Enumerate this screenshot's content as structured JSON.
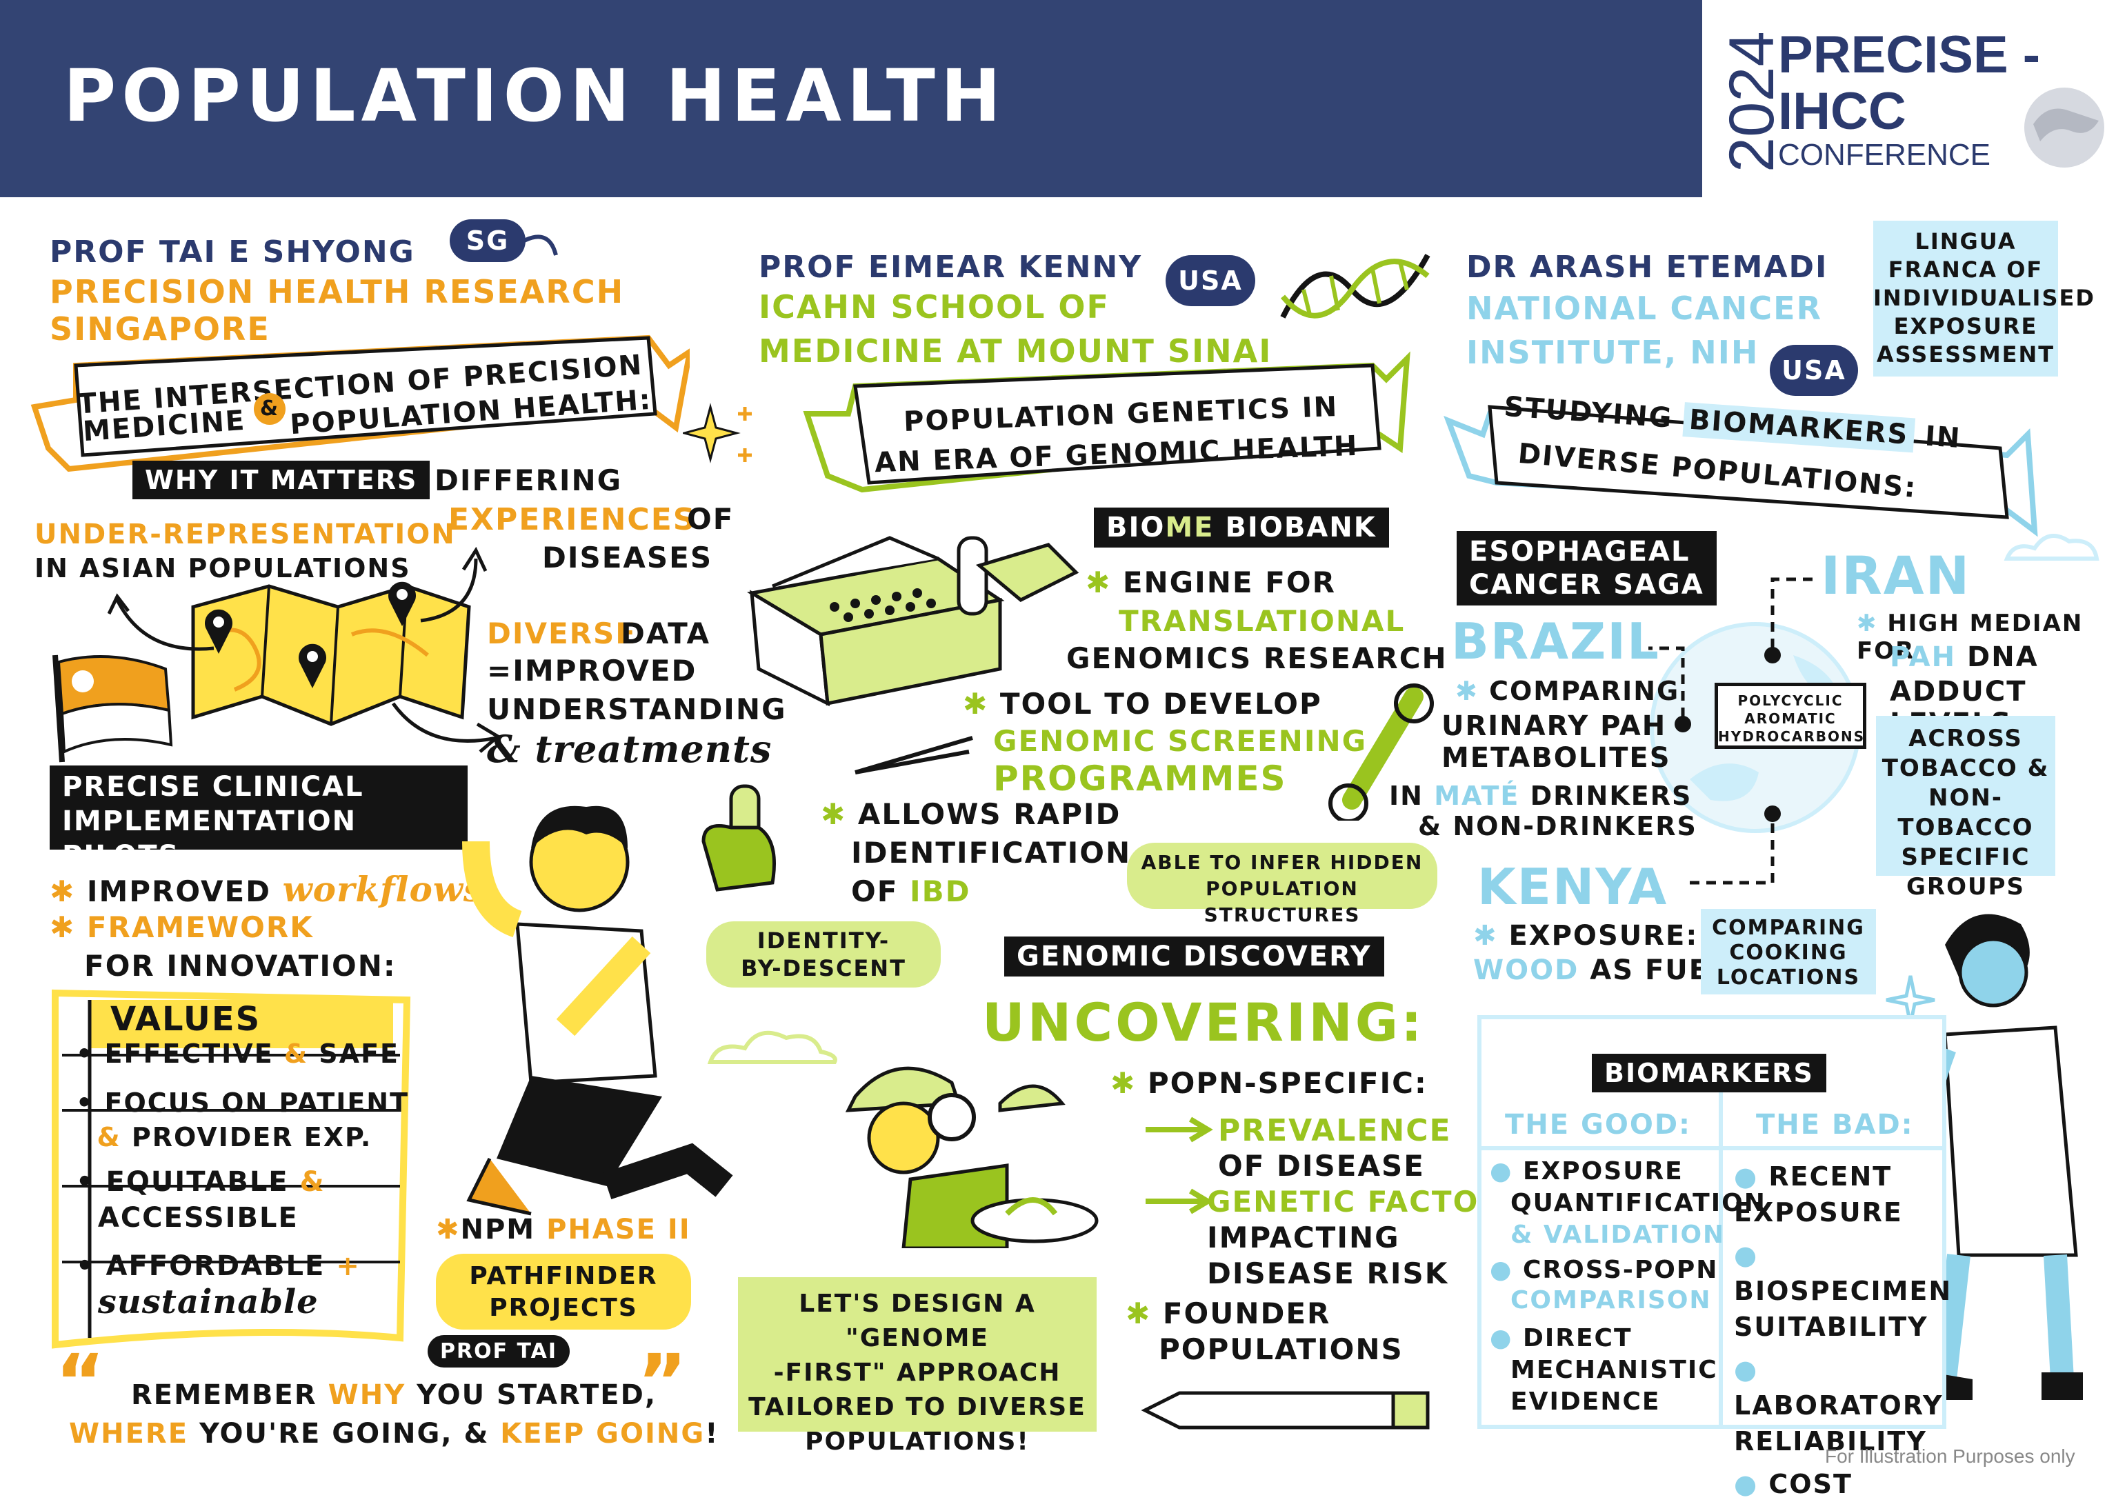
{
  "header": {
    "title": "POPULATION HEALTH"
  },
  "logo": {
    "year": "2024",
    "line1": "PRECISE -",
    "line2": "IHCC",
    "line3": "CONFERENCE"
  },
  "col1": {
    "speaker": "PROF TAI E SHYONG",
    "country": "SG",
    "affil_line1": "PRECISION HEALTH RESEARCH",
    "affil_line2": "SINGAPORE",
    "banner_line1": "THE INTERSECTION OF PRECISION",
    "banner_line2_a": "MEDICINE",
    "banner_amp": "&",
    "banner_line2_b": "POPULATION HEALTH:",
    "why_tag": "WHY IT MATTERS",
    "underrep_a": "UNDER-REPRESENTATION",
    "underrep_b": "IN ASIAN POPULATIONS",
    "differing_a": "DIFFERING",
    "differing_b": "EXPERIENCES",
    "differing_c": "OF",
    "differing_d": "DISEASES",
    "diverse_a": "DIVERSE",
    "diverse_b": "DATA",
    "diverse_c": "=IMPROVED",
    "diverse_d": "UNDERSTANDING",
    "diverse_e": "& treatments",
    "pilots_line1": "PRECISE CLINICAL",
    "pilots_line2": "IMPLEMENTATION PILOTS",
    "improved_a": "IMPROVED",
    "improved_b": "workflows",
    "framework_a": "FRAMEWORK",
    "framework_b": "FOR INNOVATION:",
    "values_title": "VALUES",
    "values": [
      {
        "a": "EFFECTIVE",
        "amp": "&",
        "b": "SAFE"
      },
      {
        "a": "FOCUS ON PATIENT",
        "amp": "&",
        "b": "PROVIDER EXP."
      },
      {
        "a": "EQUITABLE",
        "amp": "&",
        "b": "ACCESSIBLE"
      },
      {
        "a": "AFFORDABLE",
        "amp": "+",
        "b": "sustainable"
      }
    ],
    "npm_a": "NPM",
    "npm_b": "PHASE II",
    "pathfinder_a": "PATHFINDER",
    "pathfinder_b": "PROJECTS",
    "quote_tag": "PROF TAI",
    "quote_open": "“",
    "quote_close": "”",
    "quote_a1": "REMEMBER",
    "quote_a2": "WHY",
    "quote_a3": "YOU STARTED,",
    "quote_b1": "WHERE",
    "quote_b2": "YOU'RE GOING, &",
    "quote_b3": "KEEP GOING",
    "quote_b4": "!"
  },
  "col2": {
    "speaker": "PROF EIMEAR KENNY",
    "country": "USA",
    "affil_line1": "ICAHN SCHOOL OF",
    "affil_line2": "MEDICINE AT MOUNT SINAI",
    "banner_line1": "POPULATION GENETICS IN",
    "banner_line2": "AN ERA OF GENOMIC HEALTH",
    "biome_a": "BIO",
    "biome_b": "ME",
    "biome_c": " BIOBANK",
    "engine_a": "ENGINE FOR",
    "engine_b": "TRANSLATIONAL",
    "engine_c": "GENOMICS RESEARCH",
    "tool_a": "TOOL TO DEVELOP",
    "tool_b": "GENOMIC SCREENING",
    "tool_c": "PROGRAMMES",
    "allows_a": "ALLOWS RAPID",
    "allows_b": "IDENTIFICATION",
    "allows_c": "OF",
    "allows_d": "IBD",
    "able_a": "ABLE TO INFER HIDDEN",
    "able_b": "POPULATION STRUCTURES",
    "ibd_a": "IDENTITY-",
    "ibd_b": "BY-DESCENT",
    "discovery_tag": "GENOMIC DISCOVERY",
    "uncovering": "UNCOVERING:",
    "popn": "POPN-SPECIFIC:",
    "prev_a": "PREVALENCE",
    "prev_b": "OF DISEASE",
    "gen_a": "GENETIC FACTORS",
    "gen_b": "IMPACTING",
    "gen_c": "DISEASE RISK",
    "founder_a": "FOUNDER",
    "founder_b": "POPULATIONS",
    "lets_a": "LET'S DESIGN A \"GENOME",
    "lets_b": "-FIRST\" APPROACH",
    "lets_c": "TAILORED TO DIVERSE",
    "lets_d": "POPULATIONS!"
  },
  "col3": {
    "speaker": "DR ARASH ETEMADI",
    "affil_line1": "NATIONAL CANCER",
    "affil_line2": "INSTITUTE, NIH",
    "country": "USA",
    "lingua_a": "LINGUA",
    "lingua_b": "FRANCA OF",
    "lingua_c": "INDIVIDUALISED",
    "lingua_d": "EXPOSURE",
    "lingua_e": "ASSESSMENT",
    "banner_line1_a": "STUDYING",
    "banner_line1_b": "BIOMARKERS",
    "banner_line1_c": "IN",
    "banner_line2": "DIVERSE POPULATIONS:",
    "saga_a": "ESOPHAGEAL",
    "saga_b": "CANCER SAGA",
    "iran": "IRAN",
    "iran_a": "HIGH MEDIAN FOR",
    "iran_b": "PAH",
    "iran_c": "DNA",
    "iran_d": "ADDUCT LEVELS",
    "across_a": "ACROSS",
    "across_b": "TOBACCO &",
    "across_c": "NON-TOBACCO",
    "across_d": "SPECIFIC",
    "across_e": "GROUPS",
    "brazil": "BRAZIL",
    "brazil_a": "COMPARING",
    "brazil_b": "URINARY PAH",
    "brazil_c": "METABOLITES",
    "brazil_d": "IN",
    "brazil_e": "MATÉ",
    "brazil_f": "DRINKERS",
    "brazil_g": "& NON-DRINKERS",
    "pah_a": "POLYCYCLIC",
    "pah_b": "AROMATIC",
    "pah_c": "HYDROCARBONS",
    "kenya": "KENYA",
    "kenya_a": "EXPOSURE:",
    "kenya_b": "WOOD",
    "kenya_c": "AS FUEL",
    "cooking_a": "COMPARING",
    "cooking_b": "COOKING",
    "cooking_c": "LOCATIONS",
    "biomarkers_tag": "BIOMARKERS",
    "good_title": "THE GOOD:",
    "bad_title": "THE BAD:",
    "good": [
      {
        "a": "EXPOSURE",
        "b": "QUANTIFICATION",
        "c": "& VALIDATION"
      },
      {
        "a": "CROSS-POPN",
        "b": "COMPARISON"
      },
      {
        "a": "DIRECT",
        "b": "MECHANISTIC",
        "c": "EVIDENCE"
      }
    ],
    "bad": [
      "RECENT EXPOSURE",
      "BIOSPECIMEN SUITABILITY",
      "LABORATORY RELIABILITY",
      "COST"
    ]
  },
  "footer": {
    "note": "For Illustration Purposes only"
  },
  "colors": {
    "navy": "#334473",
    "orange": "#f0a01e",
    "green": "#9ac41f",
    "blue": "#8fd3ea",
    "ink": "#141414",
    "yellow": "#ffe14a",
    "lightgreen": "#d9ec8c",
    "lightblue": "#cdeefa"
  }
}
